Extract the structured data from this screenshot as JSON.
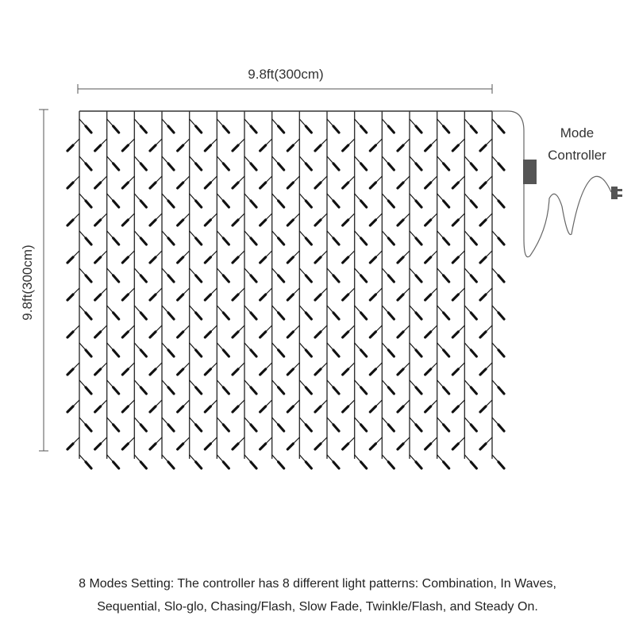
{
  "dimensions": {
    "width_label": "9.8ft(300cm)",
    "height_label": "9.8ft(300cm)"
  },
  "controller": {
    "label_line1": "Mode",
    "label_line2": "Controller",
    "box_color": "#555555"
  },
  "curtain": {
    "strand_count": 16,
    "wire_color": "#333333",
    "bulb_color": "#111111"
  },
  "caption": {
    "line1": "8 Modes Setting: The controller has 8 different light patterns: Combination, In Waves,",
    "line2": "Sequential, Slo-glo, Chasing/Flash, Slow Fade, Twinkle/Flash, and Steady On."
  }
}
